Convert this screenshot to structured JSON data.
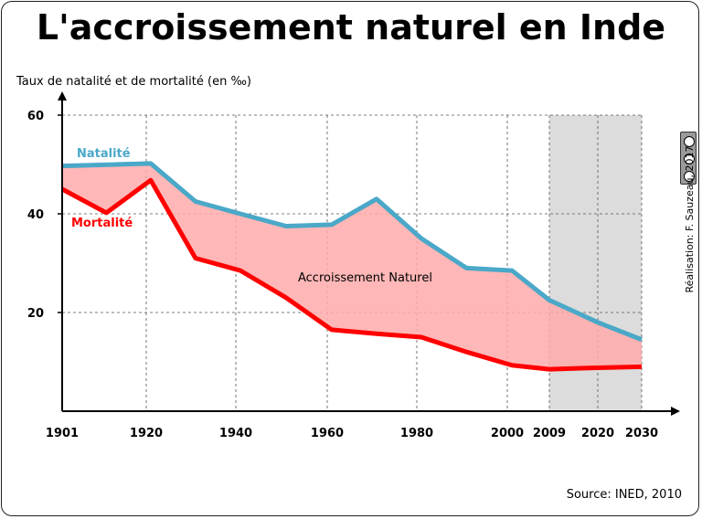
{
  "title": "L'accroissement naturel en Inde",
  "credit": "Réalisation: F. Sauzeau, 2017",
  "source": "Source: INED, 2010",
  "license_icon": "creative-commons-by-nc-sa-icon",
  "colors": {
    "natalite": "#4aa8c8",
    "mortalite": "#ff0000",
    "fill": "#ffaaaa",
    "projection": "#dcdcdc"
  },
  "chart_data": {
    "type": "line",
    "title": "L'accroissement naturel en Inde",
    "ylabel": "Taux de natalité et de mortalité (en ‰)",
    "xlabel": "",
    "x_ticks": [
      "1901",
      "1920",
      "1940",
      "1960",
      "1980",
      "2000",
      "2009",
      "2020",
      "2030"
    ],
    "y_ticks": [
      "20",
      "40",
      "60"
    ],
    "ylim": [
      0,
      60
    ],
    "grid": true,
    "projection_range": [
      "2009",
      "2030"
    ],
    "annotation": "Accroissement Naturel",
    "series": [
      {
        "name": "Natalité",
        "x": [
          1901,
          1921,
          1931,
          1941,
          1951,
          1961,
          1971,
          1981,
          1991,
          2001,
          2009,
          2020,
          2030
        ],
        "y": [
          49.7,
          50.2,
          42.5,
          40,
          37.5,
          37.8,
          43,
          35,
          29,
          28.5,
          22.5,
          18,
          14.5
        ]
      },
      {
        "name": "Mortalité",
        "x": [
          1901,
          1911,
          1921,
          1931,
          1941,
          1951,
          1961,
          1971,
          1981,
          1991,
          2001,
          2009,
          2020,
          2030
        ],
        "y": [
          45,
          40.2,
          46.8,
          31,
          28.5,
          23,
          16.5,
          15.7,
          15,
          12,
          9.3,
          8.5,
          8.8,
          9
        ]
      }
    ]
  }
}
